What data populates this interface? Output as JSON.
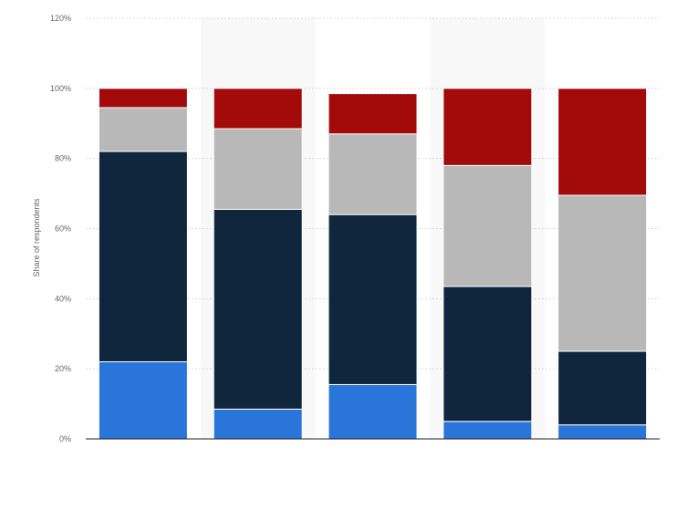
{
  "chart_data": {
    "type": "bar",
    "stacked": true,
    "title": "",
    "xlabel": "",
    "ylabel": "Share of respondents",
    "ylim": [
      0,
      120
    ],
    "yticks": [
      0,
      20,
      40,
      60,
      80,
      100,
      120
    ],
    "ytick_labels": [
      "0%",
      "20%",
      "40%",
      "60%",
      "80%",
      "100%",
      "120%"
    ],
    "categories": [
      "",
      "",
      "",
      "",
      ""
    ],
    "grid": true,
    "legend": "none",
    "series": [
      {
        "color": "#2a75d9",
        "values": [
          22,
          8.5,
          15.5,
          5,
          4
        ]
      },
      {
        "color": "#0f263d",
        "values": [
          60,
          57,
          48.5,
          38.5,
          21
        ]
      },
      {
        "color": "#b8b8b8",
        "values": [
          12.5,
          23,
          23,
          34.5,
          44.5
        ]
      },
      {
        "color": "#a30b0b",
        "values": [
          5.5,
          11.5,
          11.5,
          22,
          30.5
        ]
      }
    ]
  }
}
